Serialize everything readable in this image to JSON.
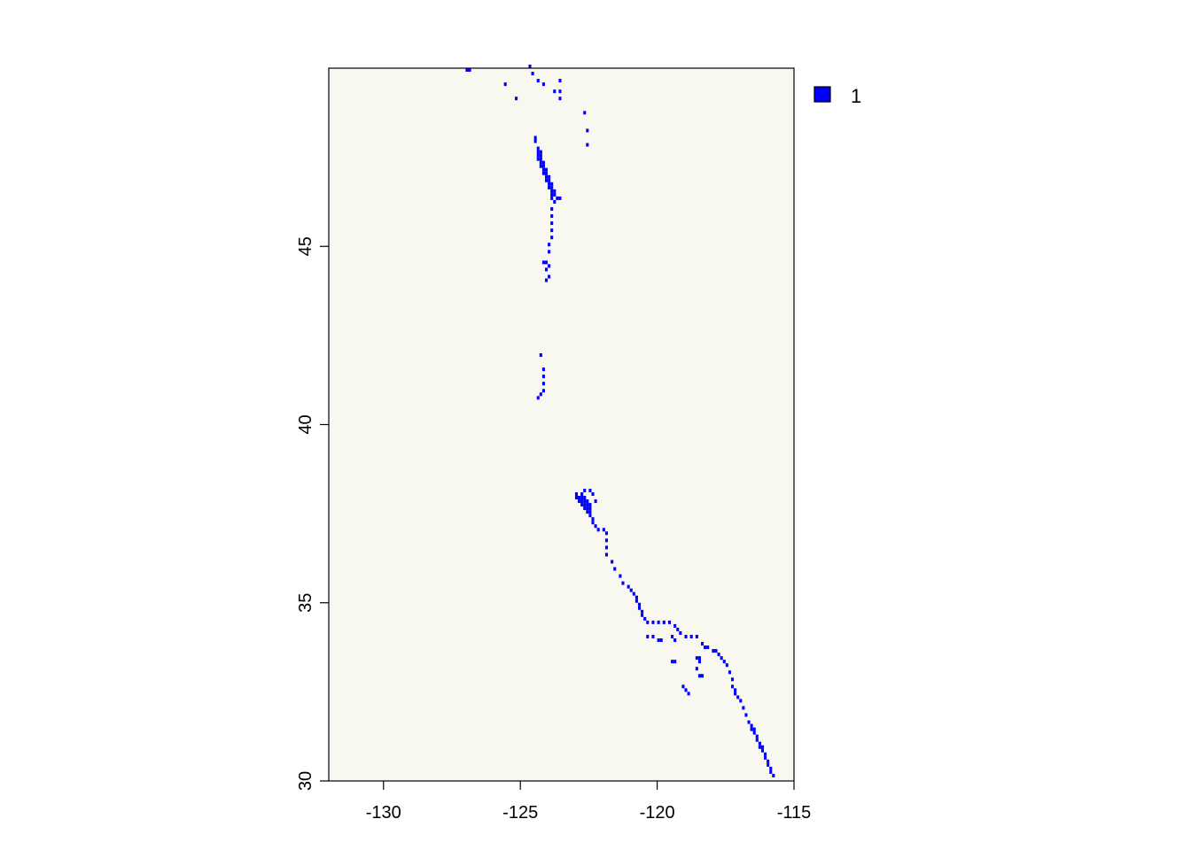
{
  "chart_data": {
    "type": "heatmap",
    "title": "",
    "xlabel": "",
    "ylabel": "",
    "xlim": [
      -132,
      -115
    ],
    "ylim": [
      30,
      50
    ],
    "x_ticks": [
      -130,
      -125,
      -120,
      -115
    ],
    "y_ticks": [
      30,
      35,
      40,
      45
    ],
    "x_tick_labels": [
      "-130",
      "-125",
      "-120",
      "-115"
    ],
    "y_tick_labels": [
      "30",
      "35",
      "40",
      "45"
    ],
    "background_color": "#F8F8F0",
    "value_color": "#0000FF",
    "grid": false,
    "legend": {
      "position": "right-top",
      "entries": [
        {
          "label": "1",
          "color": "#0000FF"
        }
      ]
    },
    "cell_size": [
      0.1,
      0.1
    ],
    "cells": [
      [
        -127.0,
        49.9
      ],
      [
        -126.9,
        49.9
      ],
      [
        -124.7,
        50.0
      ],
      [
        -124.6,
        49.8
      ],
      [
        -124.4,
        49.6
      ],
      [
        -124.2,
        49.5
      ],
      [
        -123.6,
        49.6
      ],
      [
        -123.6,
        49.3
      ],
      [
        -123.6,
        49.1
      ],
      [
        -123.8,
        49.3
      ],
      [
        -125.6,
        49.5
      ],
      [
        -125.2,
        49.1
      ],
      [
        -122.7,
        48.7
      ],
      [
        -122.6,
        48.2
      ],
      [
        -122.6,
        47.8
      ],
      [
        -124.5,
        48.0
      ],
      [
        -124.5,
        47.9
      ],
      [
        -124.4,
        47.7
      ],
      [
        -124.4,
        47.6
      ],
      [
        -124.3,
        47.6
      ],
      [
        -124.4,
        47.5
      ],
      [
        -124.3,
        47.5
      ],
      [
        -124.4,
        47.4
      ],
      [
        -124.3,
        47.4
      ],
      [
        -124.3,
        47.3
      ],
      [
        -124.2,
        47.3
      ],
      [
        -124.3,
        47.2
      ],
      [
        -124.2,
        47.2
      ],
      [
        -124.2,
        47.1
      ],
      [
        -124.1,
        47.1
      ],
      [
        -124.2,
        47.0
      ],
      [
        -124.1,
        47.0
      ],
      [
        -124.1,
        46.9
      ],
      [
        -124.0,
        46.9
      ],
      [
        -124.1,
        46.8
      ],
      [
        -124.0,
        46.8
      ],
      [
        -124.0,
        46.7
      ],
      [
        -123.9,
        46.7
      ],
      [
        -124.0,
        46.6
      ],
      [
        -123.9,
        46.6
      ],
      [
        -123.9,
        46.5
      ],
      [
        -123.8,
        46.5
      ],
      [
        -123.9,
        46.4
      ],
      [
        -123.8,
        46.4
      ],
      [
        -123.9,
        46.3
      ],
      [
        -123.8,
        46.2
      ],
      [
        -123.6,
        46.3
      ],
      [
        -123.7,
        46.3
      ],
      [
        -123.9,
        46.0
      ],
      [
        -123.9,
        45.8
      ],
      [
        -123.9,
        45.6
      ],
      [
        -123.9,
        45.4
      ],
      [
        -123.9,
        45.2
      ],
      [
        -124.0,
        45.0
      ],
      [
        -124.0,
        44.8
      ],
      [
        -124.1,
        44.5
      ],
      [
        -124.2,
        44.5
      ],
      [
        -124.0,
        44.4
      ],
      [
        -124.1,
        44.3
      ],
      [
        -124.0,
        44.1
      ],
      [
        -124.1,
        44.0
      ],
      [
        -124.3,
        41.9
      ],
      [
        -124.2,
        41.5
      ],
      [
        -124.2,
        41.3
      ],
      [
        -124.2,
        41.1
      ],
      [
        -124.2,
        40.9
      ],
      [
        -124.3,
        40.8
      ],
      [
        -124.4,
        40.7
      ],
      [
        -123.0,
        38.0
      ],
      [
        -122.8,
        38.0
      ],
      [
        -122.7,
        38.1
      ],
      [
        -122.5,
        38.1
      ],
      [
        -122.4,
        38.0
      ],
      [
        -123.0,
        37.9
      ],
      [
        -122.9,
        37.9
      ],
      [
        -122.8,
        37.9
      ],
      [
        -122.7,
        37.9
      ],
      [
        -122.9,
        37.8
      ],
      [
        -122.8,
        37.8
      ],
      [
        -122.7,
        37.8
      ],
      [
        -122.6,
        37.8
      ],
      [
        -122.3,
        37.8
      ],
      [
        -122.8,
        37.7
      ],
      [
        -122.7,
        37.7
      ],
      [
        -122.6,
        37.7
      ],
      [
        -122.5,
        37.7
      ],
      [
        -122.7,
        37.6
      ],
      [
        -122.6,
        37.6
      ],
      [
        -122.5,
        37.6
      ],
      [
        -122.6,
        37.5
      ],
      [
        -122.5,
        37.5
      ],
      [
        -122.5,
        37.4
      ],
      [
        -122.4,
        37.3
      ],
      [
        -122.4,
        37.2
      ],
      [
        -122.3,
        37.1
      ],
      [
        -122.2,
        37.0
      ],
      [
        -122.0,
        37.0
      ],
      [
        -121.9,
        36.9
      ],
      [
        -121.9,
        36.7
      ],
      [
        -121.9,
        36.5
      ],
      [
        -121.9,
        36.3
      ],
      [
        -121.7,
        36.1
      ],
      [
        -121.6,
        35.9
      ],
      [
        -121.4,
        35.7
      ],
      [
        -121.3,
        35.5
      ],
      [
        -121.1,
        35.4
      ],
      [
        -121.0,
        35.3
      ],
      [
        -120.9,
        35.2
      ],
      [
        -120.8,
        35.1
      ],
      [
        -120.8,
        35.0
      ],
      [
        -120.7,
        34.9
      ],
      [
        -120.7,
        34.8
      ],
      [
        -120.6,
        34.7
      ],
      [
        -120.6,
        34.6
      ],
      [
        -120.5,
        34.5
      ],
      [
        -120.4,
        34.4
      ],
      [
        -120.2,
        34.4
      ],
      [
        -120.0,
        34.4
      ],
      [
        -119.8,
        34.4
      ],
      [
        -119.6,
        34.4
      ],
      [
        -119.4,
        34.3
      ],
      [
        -119.3,
        34.2
      ],
      [
        -119.2,
        34.1
      ],
      [
        -119.0,
        34.0
      ],
      [
        -118.8,
        34.0
      ],
      [
        -118.6,
        34.0
      ],
      [
        -118.4,
        33.8
      ],
      [
        -118.3,
        33.7
      ],
      [
        -118.2,
        33.7
      ],
      [
        -118.0,
        33.6
      ],
      [
        -117.9,
        33.6
      ],
      [
        -117.8,
        33.5
      ],
      [
        -117.7,
        33.4
      ],
      [
        -117.6,
        33.3
      ],
      [
        -117.5,
        33.2
      ],
      [
        -117.4,
        33.0
      ],
      [
        -117.3,
        32.8
      ],
      [
        -117.3,
        32.6
      ],
      [
        -117.2,
        32.5
      ],
      [
        -117.2,
        32.4
      ],
      [
        -117.1,
        32.3
      ],
      [
        -117.0,
        32.2
      ],
      [
        -116.9,
        32.0
      ],
      [
        -116.8,
        31.8
      ],
      [
        -116.7,
        31.6
      ],
      [
        -116.6,
        31.5
      ],
      [
        -116.6,
        31.4
      ],
      [
        -116.5,
        31.4
      ],
      [
        -116.5,
        31.3
      ],
      [
        -116.4,
        31.2
      ],
      [
        -116.4,
        31.1
      ],
      [
        -116.3,
        31.0
      ],
      [
        -116.3,
        30.9
      ],
      [
        -116.2,
        30.9
      ],
      [
        -116.2,
        30.8
      ],
      [
        -116.1,
        30.7
      ],
      [
        -116.1,
        30.6
      ],
      [
        -116.0,
        30.5
      ],
      [
        -116.0,
        30.4
      ],
      [
        -115.9,
        30.3
      ],
      [
        -115.9,
        30.2
      ],
      [
        -115.8,
        30.1
      ],
      [
        -120.4,
        34.0
      ],
      [
        -120.2,
        34.0
      ],
      [
        -120.0,
        33.9
      ],
      [
        -119.9,
        33.9
      ],
      [
        -119.5,
        34.0
      ],
      [
        -119.4,
        33.9
      ],
      [
        -119.5,
        33.3
      ],
      [
        -119.4,
        33.3
      ],
      [
        -118.6,
        33.4
      ],
      [
        -118.5,
        33.4
      ],
      [
        -118.5,
        33.3
      ],
      [
        -118.5,
        32.9
      ],
      [
        -118.4,
        32.9
      ],
      [
        -118.6,
        33.1
      ],
      [
        -119.1,
        32.6
      ],
      [
        -118.9,
        32.4
      ],
      [
        -119.0,
        32.5
      ]
    ]
  }
}
